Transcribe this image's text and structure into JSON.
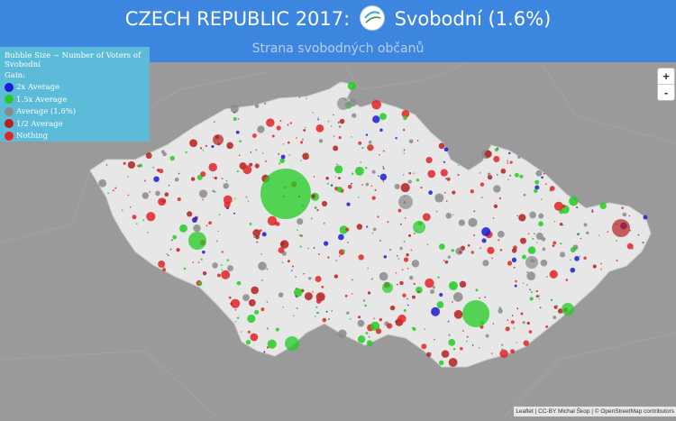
{
  "header": {
    "title_prefix": "CZECH REPUBLIC 2017:",
    "title_party": "Svobodní (1.6%)",
    "subtitle": "Strana svobodných občanů"
  },
  "legend": {
    "heading": "Bubble Size ~ Number of Voters of Svobodní",
    "gain_label": "Gain:",
    "items": [
      {
        "label": "2x Average",
        "color": "#1b1bd6"
      },
      {
        "label": "1.5x Average",
        "color": "#22cc22"
      },
      {
        "label": "Average (1.6%)",
        "color": "#8a8a8a"
      },
      {
        "label": "1/2 Average",
        "color": "#b51f1f"
      },
      {
        "label": "Nothing",
        "color": "#e32424"
      }
    ]
  },
  "zoom": {
    "in_label": "+",
    "out_label": "-"
  },
  "attribution": "Leaflet | CC-BY Michal Škop | © OpenStreetMap contributors",
  "colors": {
    "header_bg": "#3c86e0",
    "legend_bg": "#5bbbd9",
    "land": "#e7e7e7",
    "surroundings": "#9a9a9a"
  }
}
